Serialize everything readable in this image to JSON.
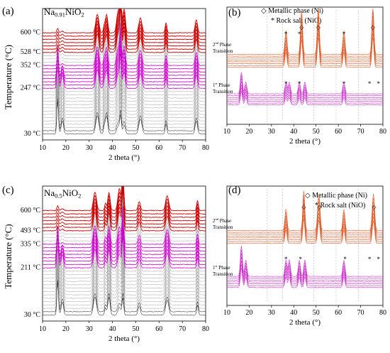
{
  "chart_data": [
    {
      "type": "line",
      "panel": "(a)",
      "title": "Na0.91NiO2",
      "title_parts": {
        "base": "Na",
        "sub1": "0.91",
        "mid": "NiO",
        "sub2": "2"
      },
      "xlabel": "2 theta (°)",
      "ylabel": "Temperature (°C)",
      "xlim": [
        10,
        80
      ],
      "xticks": [
        10,
        20,
        30,
        40,
        50,
        60,
        70,
        80
      ],
      "temperature_labels": [
        "600 °C",
        "528 °C",
        "352 °C",
        "247 °C",
        "30 °C"
      ],
      "series_colors": {
        "low": "#000000",
        "mid": "#cc00cc",
        "high": "#cc0000",
        "rest": "#9a9a9a"
      },
      "peaks_2theta": [
        16.5,
        18.5,
        33.5,
        36.5,
        37.5,
        42.5,
        43.5,
        45,
        52,
        63,
        76
      ]
    },
    {
      "type": "line",
      "panel": "(b)",
      "xlabel": "2 theta (°)",
      "xlim": [
        10,
        80
      ],
      "xticks": [
        10,
        20,
        30,
        40,
        50,
        60,
        70,
        80
      ],
      "legend": [
        "◇ Metallic phase (Ni)",
        "* Rock salt (NiO)"
      ],
      "annotations": [
        "2nd Phase Transition",
        "1st Phase Transition"
      ],
      "annotation_parts": [
        {
          "num": "2",
          "sup": "nd",
          "rest": " Phase",
          "line2": "Transition"
        },
        {
          "num": "1",
          "sup": "st",
          "rest": " Phase",
          "line2": "Transition"
        }
      ],
      "ni_peaks": [
        43.5,
        51,
        75.5
      ],
      "nio_peaks_upper": [
        36.5,
        42.5,
        62.5
      ],
      "nio_peaks_lower": [
        36.5,
        42.5,
        62.5,
        74,
        78
      ],
      "colors": {
        "upper": "#e06030",
        "lower": "#cc33cc"
      }
    },
    {
      "type": "line",
      "panel": "(c)",
      "title": "Na0.5NiO2",
      "title_parts": {
        "base": "Na",
        "sub1": "0.5",
        "mid": "NiO",
        "sub2": "2"
      },
      "xlabel": "2 theta (°)",
      "ylabel": "Temperature (°C)",
      "xlim": [
        10,
        80
      ],
      "xticks": [
        10,
        20,
        30,
        40,
        50,
        60,
        70,
        80
      ],
      "temperature_labels": [
        "600 °C",
        "493 °C",
        "335 °C",
        "211 °C",
        "30 °C"
      ],
      "series_colors": {
        "low": "#000000",
        "mid": "#cc00cc",
        "high": "#cc0000",
        "rest": "#9a9a9a"
      },
      "peaks_2theta": [
        16.5,
        18.5,
        32.5,
        37,
        38.5,
        43,
        44.5,
        51.5,
        63.5,
        76.5
      ]
    },
    {
      "type": "line",
      "panel": "(d)",
      "xlabel": "2 theta (°)",
      "xlim": [
        10,
        80
      ],
      "xticks": [
        10,
        20,
        30,
        40,
        50,
        60,
        70,
        80
      ],
      "legend": [
        "◇ Metallic phase (Ni)",
        "* Rock salt (NiO)"
      ],
      "annotations": [
        "2nd Phase Transition",
        "1st Phase Transition"
      ],
      "annotation_parts": [
        {
          "num": "2",
          "sup": "nd",
          "rest": " Phase",
          "line2": "Transition"
        },
        {
          "num": "1",
          "sup": "st",
          "rest": " Phase",
          "line2": "Transition"
        }
      ],
      "ni_peaks": [
        44.5,
        51.5,
        76
      ],
      "nio_peaks_upper": [],
      "nio_peaks_lower": [
        36.5,
        43,
        63,
        74,
        78
      ],
      "colors": {
        "upper": "#e06030",
        "lower": "#cc33cc"
      }
    }
  ]
}
